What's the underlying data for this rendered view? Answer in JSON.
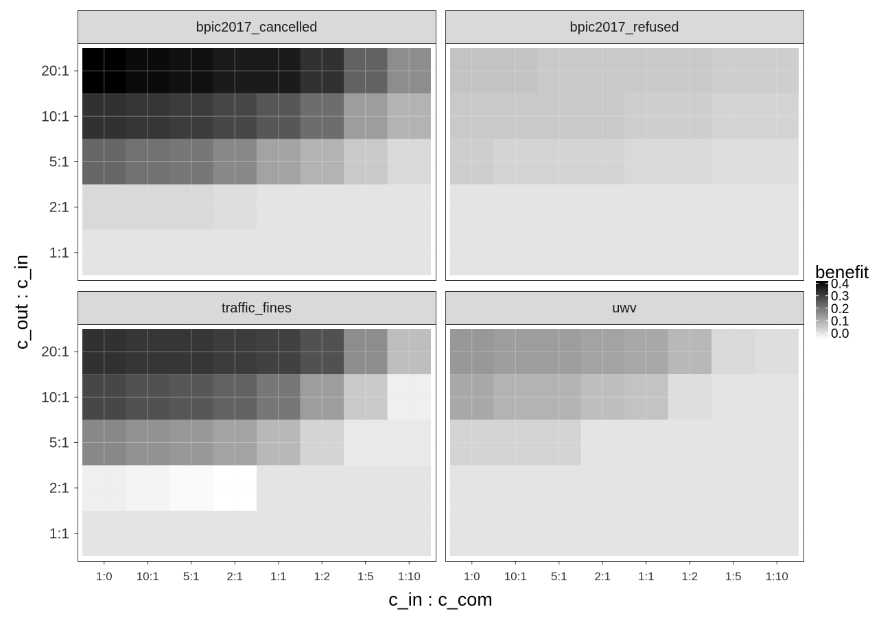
{
  "chart_data": {
    "type": "heatmap",
    "xlabel": "c_in : c_com",
    "ylabel": "c_out : c_in",
    "x_categories": [
      "1:0",
      "10:1",
      "5:1",
      "2:1",
      "1:1",
      "1:2",
      "1:5",
      "1:10"
    ],
    "y_categories": [
      "20:1",
      "10:1",
      "5:1",
      "2:1",
      "1:1"
    ],
    "legend": {
      "title": "benefit",
      "ticks": [
        "0.4",
        "0.3",
        "0.2",
        "0.1",
        "0.0"
      ],
      "tick_values": [
        0.4,
        0.3,
        0.2,
        0.1,
        0.0
      ],
      "range": [
        -0.05,
        0.42
      ],
      "placement": "right",
      "color_low": "#ffffff",
      "color_high": "#000000"
    },
    "colors": {
      "panel_background": "#ffffff",
      "strip_background": "#d9d9d9",
      "grid": "#ebebeb",
      "border": "#333333"
    },
    "panels": [
      {
        "name": "bpic2017_cancelled",
        "values": [
          [
            0.42,
            0.4,
            0.39,
            0.37,
            0.37,
            0.33,
            0.24,
            0.16
          ],
          [
            0.33,
            0.32,
            0.31,
            0.29,
            0.26,
            0.22,
            0.13,
            0.09
          ],
          [
            0.23,
            0.21,
            0.2,
            0.17,
            0.12,
            0.09,
            0.05,
            0.02
          ],
          [
            0.02,
            0.02,
            0.02,
            0.01,
            0.0,
            0.0,
            0.0,
            0.0
          ],
          [
            0.0,
            0.0,
            0.0,
            0.0,
            0.0,
            0.0,
            0.0,
            0.0
          ]
        ]
      },
      {
        "name": "bpic2017_refused",
        "values": [
          [
            0.06,
            0.06,
            0.05,
            0.05,
            0.05,
            0.05,
            0.04,
            0.04
          ],
          [
            0.05,
            0.05,
            0.05,
            0.05,
            0.04,
            0.04,
            0.03,
            0.03
          ],
          [
            0.04,
            0.03,
            0.03,
            0.03,
            0.02,
            0.02,
            0.01,
            0.01
          ],
          [
            0.0,
            0.0,
            0.0,
            0.0,
            0.0,
            0.0,
            0.0,
            0.0
          ],
          [
            0.0,
            0.0,
            0.0,
            0.0,
            0.0,
            0.0,
            0.0,
            0.0
          ]
        ]
      },
      {
        "name": "traffic_fines",
        "values": [
          [
            0.33,
            0.32,
            0.32,
            0.31,
            0.3,
            0.27,
            0.16,
            0.07
          ],
          [
            0.29,
            0.27,
            0.26,
            0.24,
            0.2,
            0.13,
            0.05,
            -0.02
          ],
          [
            0.17,
            0.15,
            0.14,
            0.12,
            0.08,
            0.03,
            -0.01,
            -0.01
          ],
          [
            -0.02,
            -0.03,
            -0.04,
            -0.05,
            0.0,
            0.0,
            0.0,
            0.0
          ],
          [
            0.0,
            0.0,
            0.0,
            0.0,
            0.0,
            0.0,
            0.0,
            0.0
          ]
        ]
      },
      {
        "name": "uwv",
        "values": [
          [
            0.14,
            0.13,
            0.13,
            0.12,
            0.11,
            0.08,
            0.02,
            0.01
          ],
          [
            0.11,
            0.09,
            0.09,
            0.07,
            0.06,
            0.01,
            0.0,
            0.0
          ],
          [
            0.03,
            0.03,
            0.03,
            0.0,
            0.0,
            0.0,
            0.0,
            0.0
          ],
          [
            0.0,
            0.0,
            0.0,
            0.0,
            0.0,
            0.0,
            0.0,
            0.0
          ],
          [
            0.0,
            0.0,
            0.0,
            0.0,
            0.0,
            0.0,
            0.0,
            0.0
          ]
        ]
      }
    ]
  }
}
